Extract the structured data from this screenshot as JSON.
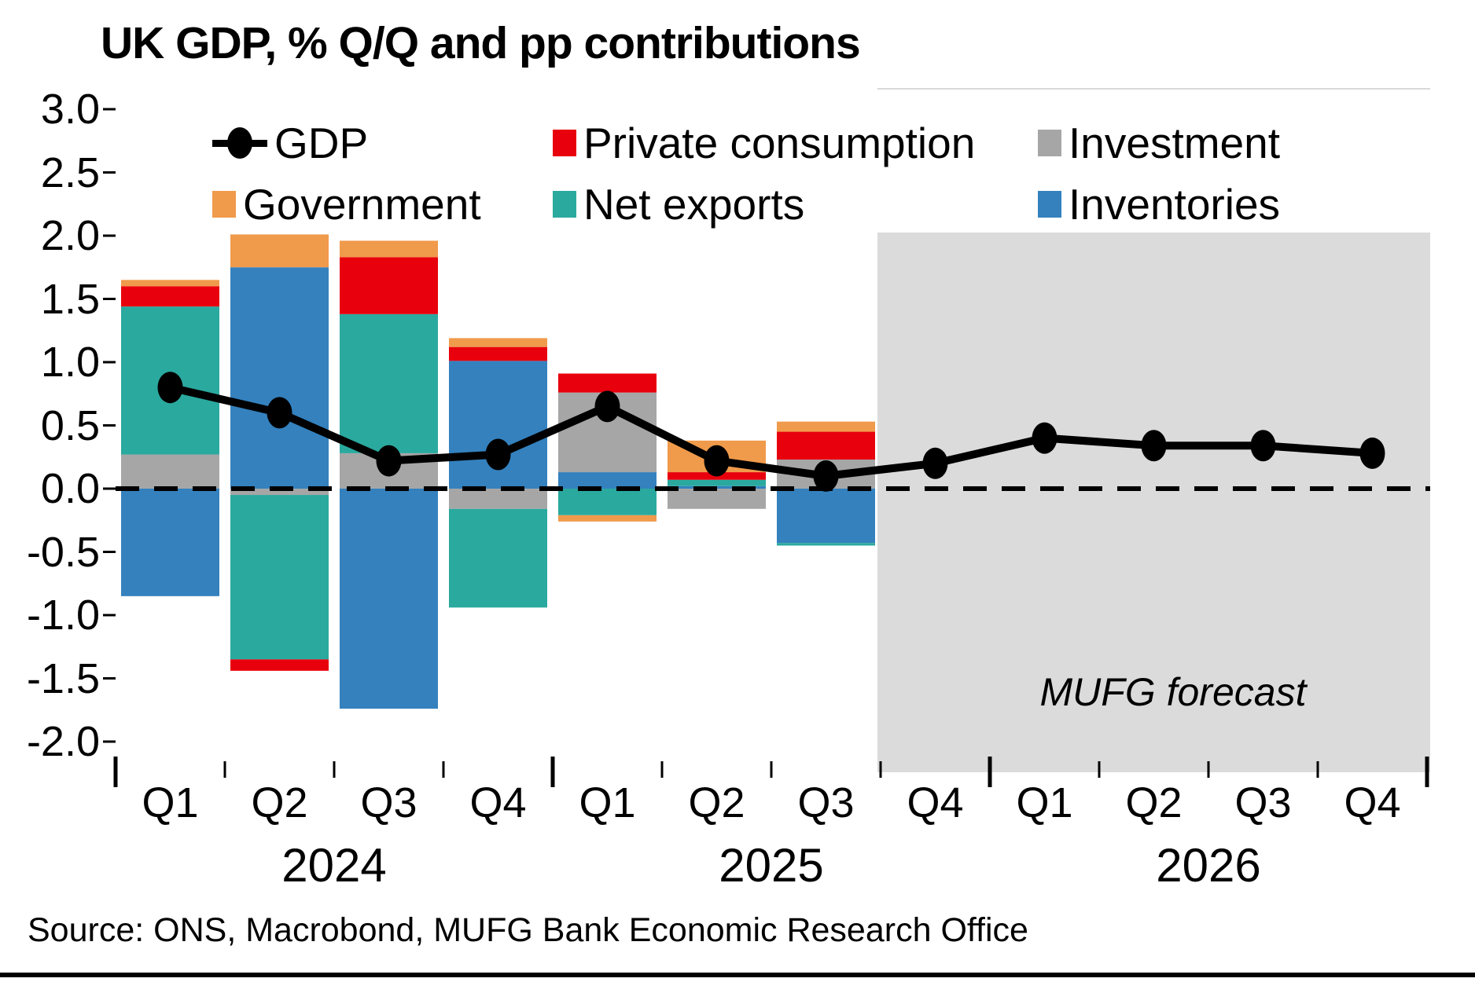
{
  "title": "UK GDP, % Q/Q and pp contributions",
  "source": "Source: ONS, Macrobond, MUFG Bank Economic Research Office",
  "forecast_label": "MUFG forecast",
  "colors": {
    "gdp_line": "#000000",
    "private_consumption": "#E8000D",
    "investment": "#A6A6A6",
    "government": "#F09A4B",
    "net_exports": "#2AA99F",
    "inventories": "#3481BE",
    "forecast_fill": "#DBDBDB",
    "plot_border": "#D9D9D9"
  },
  "legend": [
    {
      "id": "gdp",
      "label": "GDP",
      "marker": "line-dot",
      "color": "#000000",
      "row": 1,
      "col": 1
    },
    {
      "id": "private-consumption",
      "label": "Private consumption",
      "marker": "square",
      "color": "#E8000D",
      "row": 1,
      "col": 2
    },
    {
      "id": "investment",
      "label": "Investment",
      "marker": "square",
      "color": "#A6A6A6",
      "row": 1,
      "col": 3
    },
    {
      "id": "government",
      "label": "Government",
      "marker": "square",
      "color": "#F09A4B",
      "row": 2,
      "col": 1
    },
    {
      "id": "net-exports",
      "label": "Net exports",
      "marker": "square",
      "color": "#2AA99F",
      "row": 2,
      "col": 2
    },
    {
      "id": "inventories",
      "label": "Inventories",
      "marker": "square",
      "color": "#3481BE",
      "row": 2,
      "col": 3
    }
  ],
  "chart_data": {
    "type": "bar",
    "stacked": true,
    "title": "UK GDP, % Q/Q and pp contributions",
    "xlabel": "",
    "ylabel": "% Q/Q and pp contributions",
    "ylim": [
      -2.0,
      3.0
    ],
    "ytick_labels": [
      "3.0",
      "2.5",
      "2.0",
      "1.5",
      "1.0",
      "0.5",
      "0.0",
      "-0.5",
      "-1.0",
      "-1.5",
      "-2.0"
    ],
    "grid": false,
    "zero_line": "dashed",
    "legend_position": "top",
    "categories": [
      "Q1",
      "Q2",
      "Q3",
      "Q4",
      "Q1",
      "Q2",
      "Q3",
      "Q4",
      "Q1",
      "Q2",
      "Q3",
      "Q4"
    ],
    "year_groups": [
      {
        "label": "2024",
        "start": 0,
        "end": 3
      },
      {
        "label": "2025",
        "start": 4,
        "end": 7
      },
      {
        "label": "2026",
        "start": 8,
        "end": 11
      }
    ],
    "forecast": {
      "label": "MUFG forecast",
      "start_index": 7,
      "note": "shaded region, bars not shown in forecast"
    },
    "series": [
      {
        "name": "Inventories",
        "color": "#3481BE",
        "values": [
          -0.85,
          1.75,
          -1.74,
          1.01,
          0.13,
          0.02,
          -0.43,
          null,
          null,
          null,
          null,
          null
        ]
      },
      {
        "name": "Investment",
        "color": "#A6A6A6",
        "values": [
          0.27,
          -0.05,
          0.28,
          -0.16,
          0.63,
          -0.16,
          0.23,
          null,
          null,
          null,
          null,
          null
        ]
      },
      {
        "name": "Net exports",
        "color": "#2AA99F",
        "values": [
          1.17,
          -1.3,
          1.1,
          -0.78,
          -0.21,
          0.05,
          -0.02,
          null,
          null,
          null,
          null,
          null
        ]
      },
      {
        "name": "Private consumption",
        "color": "#E8000D",
        "values": [
          0.16,
          -0.09,
          0.45,
          0.11,
          0.15,
          0.06,
          0.22,
          null,
          null,
          null,
          null,
          null
        ]
      },
      {
        "name": "Government",
        "color": "#F09A4B",
        "values": [
          0.05,
          0.26,
          0.13,
          0.07,
          -0.05,
          0.25,
          0.08,
          null,
          null,
          null,
          null,
          null
        ]
      }
    ],
    "line_series": {
      "name": "GDP",
      "color": "#000000",
      "values": [
        0.8,
        0.6,
        0.22,
        0.27,
        0.65,
        0.22,
        0.1,
        0.2,
        0.4,
        0.34,
        0.34,
        0.28
      ]
    }
  }
}
